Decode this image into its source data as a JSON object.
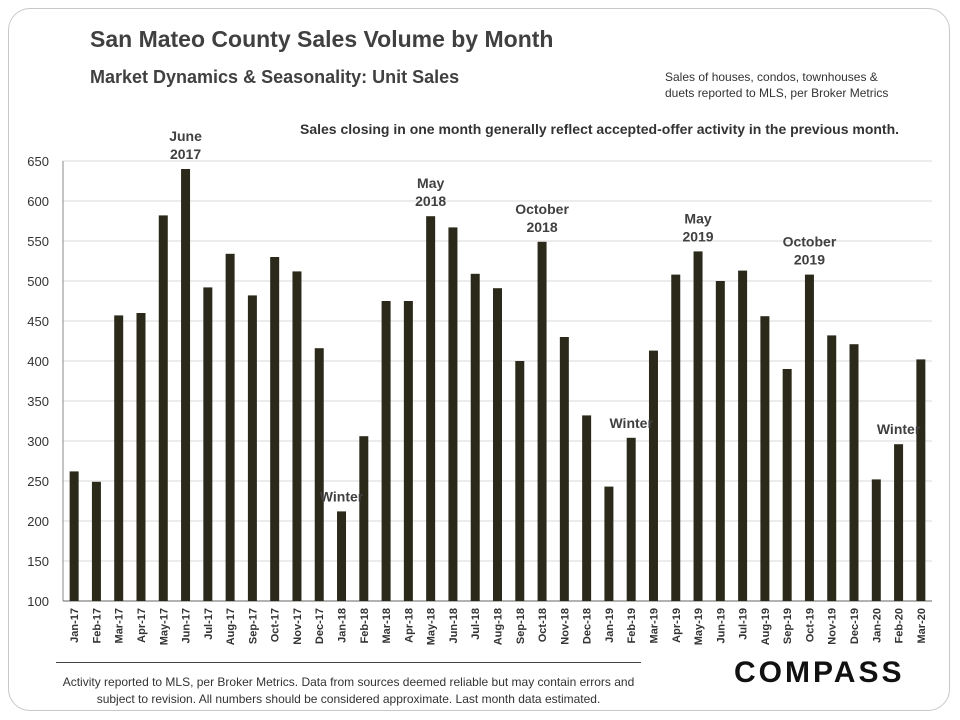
{
  "title": "San Mateo County Sales Volume by Month",
  "subtitle": "Market Dynamics  &  Seasonality:  Unit Sales",
  "side_note": "Sales of houses, condos, townhouses &\nduets reported to MLS, per Broker Metrics",
  "chart_note": "Sales closing in one month generally reflect accepted-offer activity in the previous month.",
  "footnote": "Activity reported to MLS, per Broker Metrics. Data from sources deemed reliable but may contain errors and subject to revision. All numbers should be considered approximate. Last month data estimated.",
  "logo": "COMPASS",
  "colors": {
    "bar": "#2b2a1a",
    "grid": "#d9d9d9",
    "text": "#404040"
  },
  "chart_data": {
    "type": "bar",
    "title": "San Mateo County Sales Volume by Month",
    "xlabel": "",
    "ylabel": "",
    "ylim": [
      100,
      650
    ],
    "yticks": [
      100,
      150,
      200,
      250,
      300,
      350,
      400,
      450,
      500,
      550,
      600,
      650
    ],
    "grid": true,
    "categories": [
      "Jan-17",
      "Feb-17",
      "Mar-17",
      "Apr-17",
      "May-17",
      "Jun-17",
      "Jul-17",
      "Aug-17",
      "Sep-17",
      "Oct-17",
      "Nov-17",
      "Dec-17",
      "Jan-18",
      "Feb-18",
      "Mar-18",
      "Apr-18",
      "May-18",
      "Jun-18",
      "Jul-18",
      "Aug-18",
      "Sep-18",
      "Oct-18",
      "Nov-18",
      "Dec-18",
      "Jan-19",
      "Feb-19",
      "Mar-19",
      "Apr-19",
      "May-19",
      "Jun-19",
      "Jul-19",
      "Aug-19",
      "Sep-19",
      "Oct-19",
      "Nov-19",
      "Dec-19",
      "Jan-20",
      "Feb-20",
      "Mar-20"
    ],
    "values": [
      262,
      249,
      457,
      460,
      582,
      640,
      492,
      534,
      482,
      530,
      512,
      416,
      212,
      306,
      475,
      475,
      581,
      567,
      509,
      491,
      400,
      549,
      430,
      332,
      243,
      304,
      413,
      508,
      537,
      500,
      513,
      456,
      390,
      508,
      432,
      421,
      252,
      296,
      402
    ],
    "annotations": [
      {
        "text": "June\n2017",
        "category": "Jun-17"
      },
      {
        "text": "Winter",
        "category": "Jan-18"
      },
      {
        "text": "May\n2018",
        "category": "May-18"
      },
      {
        "text": "October\n2018",
        "category": "Oct-18"
      },
      {
        "text": "Winter",
        "category": "Feb-19"
      },
      {
        "text": "May\n2019",
        "category": "May-19"
      },
      {
        "text": "October\n2019",
        "category": "Oct-19"
      },
      {
        "text": "Winter",
        "category": "Feb-20"
      }
    ]
  }
}
